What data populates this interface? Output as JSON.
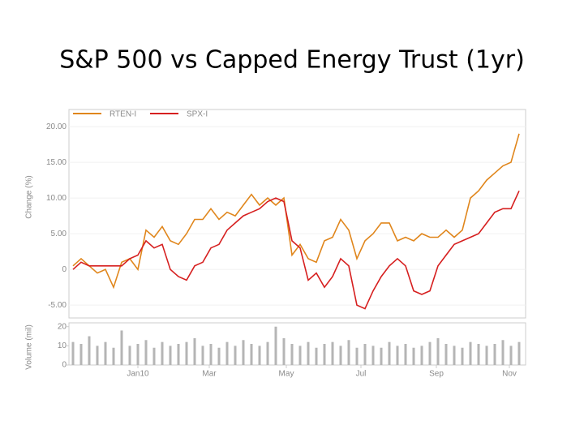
{
  "title": "S&P 500 vs Capped Energy Trust (1yr)",
  "chart_data": [
    {
      "type": "line",
      "ylabel": "Change (%)",
      "xlim": [
        0,
        55
      ],
      "ylim": [
        -6.8,
        22.4
      ],
      "yticks": [
        {
          "value": 20,
          "label": "20.00"
        },
        {
          "value": 15,
          "label": "15.00"
        },
        {
          "value": 10,
          "label": "10.00"
        },
        {
          "value": 5,
          "label": "5.00"
        },
        0,
        {
          "value": -5,
          "label": "-5.00"
        }
      ],
      "legend": "top",
      "series": [
        {
          "name": "RTEN-I",
          "color": "#e0861c",
          "values": [
            0.5,
            1.5,
            0.5,
            -0.5,
            0,
            -2.5,
            1,
            1.5,
            0,
            5.5,
            4.5,
            6,
            4,
            3.5,
            5,
            7,
            7,
            8.5,
            7,
            8,
            7.5,
            9,
            10.5,
            9,
            10,
            9,
            10,
            2,
            3.5,
            1.5,
            1,
            4,
            4.5,
            7,
            5.5,
            1.5,
            4,
            5,
            6.5,
            6.5,
            4,
            4.5,
            4,
            5,
            4.5,
            4.5,
            5.5,
            4.5,
            5.5,
            10,
            11,
            12.5,
            13.5,
            14.5,
            15,
            19
          ]
        },
        {
          "name": "SPX-I",
          "color": "#d61f1f",
          "values": [
            0,
            1,
            0.5,
            0.5,
            0.5,
            0.5,
            0.5,
            1.5,
            2,
            4,
            3,
            3.5,
            0,
            -1,
            -1.5,
            0.5,
            1,
            3,
            3.5,
            5.5,
            6.5,
            7.5,
            8,
            8.5,
            9.5,
            10,
            9.5,
            4,
            3,
            -1.5,
            -0.5,
            -2.5,
            -1,
            1.5,
            0.5,
            -5,
            -5.5,
            -3,
            -1,
            0.5,
            1.5,
            0.5,
            -3,
            -3.5,
            -3,
            0.5,
            2,
            3.5,
            4,
            4.5,
            5,
            6.5,
            8,
            8.5,
            8.5,
            11
          ]
        }
      ]
    },
    {
      "type": "bar",
      "ylabel": "Volume (mil)",
      "color": "#b5b5b5",
      "xlim": [
        0,
        55
      ],
      "ylim": [
        0,
        22
      ],
      "yticks": [
        20,
        10,
        0
      ],
      "xticks": [
        {
          "value": 8,
          "label": "Jan10"
        },
        {
          "value": 16.8,
          "label": "Mar"
        },
        {
          "value": 26.3,
          "label": "May"
        },
        {
          "value": 35.5,
          "label": "Jul"
        },
        {
          "value": 44.8,
          "label": "Sep"
        },
        {
          "value": 53.8,
          "label": "Nov"
        }
      ],
      "values": [
        12,
        11,
        15,
        10,
        12,
        9,
        18,
        10,
        11,
        13,
        9,
        12,
        10,
        11,
        12,
        14,
        10,
        11,
        9,
        12,
        10,
        13,
        11,
        10,
        12,
        20,
        14,
        11,
        10,
        12,
        9,
        11,
        12,
        10,
        13,
        9,
        11,
        10,
        9,
        12,
        10,
        11,
        9,
        10,
        12,
        14,
        11,
        10,
        9,
        12,
        11,
        10,
        11,
        13,
        10,
        12
      ]
    }
  ]
}
